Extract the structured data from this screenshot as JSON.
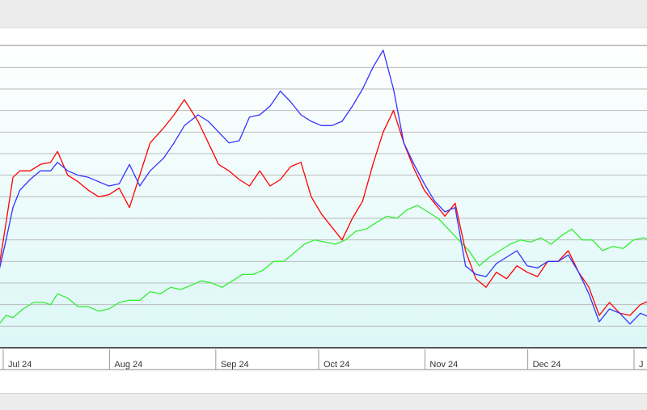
{
  "colors": {
    "series_red": "#ff0000",
    "series_blue": "#3333ff",
    "series_green": "#33ee33",
    "gridline": "#bbbbbb",
    "plot_gradient_top": "#ffffff",
    "plot_gradient_bottom": "#dcf7f7"
  },
  "chart_data": {
    "type": "line",
    "title": "",
    "xlabel": "",
    "ylabel": "",
    "grid": true,
    "legend": "none",
    "x_range": [
      "2024-06-24",
      "2025-01-03"
    ],
    "y_range": [
      0,
      15
    ],
    "x_ticks": [
      {
        "date": "2024-07-01",
        "label": "Jul 24"
      },
      {
        "date": "2024-08-01",
        "label": "Aug 24"
      },
      {
        "date": "2024-09-01",
        "label": "Sep 24"
      },
      {
        "date": "2024-10-01",
        "label": "Oct 24"
      },
      {
        "date": "2024-11-01",
        "label": "Nov 24"
      },
      {
        "date": "2024-12-01",
        "label": "Dec 24"
      },
      {
        "date": "2025-01-01",
        "label": "J"
      }
    ],
    "series": [
      {
        "color": "#ff0000",
        "points": [
          [
            "2024-06-24",
            2.8
          ],
          [
            "2024-06-27",
            3.8
          ],
          [
            "2024-06-29",
            5.8
          ],
          [
            "2024-07-01",
            7.9
          ],
          [
            "2024-07-03",
            8.2
          ],
          [
            "2024-07-06",
            8.2
          ],
          [
            "2024-07-09",
            8.5
          ],
          [
            "2024-07-12",
            8.6
          ],
          [
            "2024-07-14",
            9.1
          ],
          [
            "2024-07-17",
            8.0
          ],
          [
            "2024-07-20",
            7.7
          ],
          [
            "2024-07-23",
            7.3
          ],
          [
            "2024-07-26",
            7.0
          ],
          [
            "2024-07-29",
            7.1
          ],
          [
            "2024-08-01",
            7.4
          ],
          [
            "2024-08-04",
            6.5
          ],
          [
            "2024-08-07",
            8.0
          ],
          [
            "2024-08-10",
            9.5
          ],
          [
            "2024-08-14",
            10.2
          ],
          [
            "2024-08-17",
            10.8
          ],
          [
            "2024-08-20",
            11.5
          ],
          [
            "2024-08-24",
            10.5
          ],
          [
            "2024-08-27",
            9.5
          ],
          [
            "2024-08-30",
            8.5
          ],
          [
            "2024-09-02",
            8.2
          ],
          [
            "2024-09-05",
            7.8
          ],
          [
            "2024-09-08",
            7.5
          ],
          [
            "2024-09-11",
            8.2
          ],
          [
            "2024-09-14",
            7.5
          ],
          [
            "2024-09-17",
            7.8
          ],
          [
            "2024-09-20",
            8.4
          ],
          [
            "2024-09-23",
            8.6
          ],
          [
            "2024-09-26",
            7.0
          ],
          [
            "2024-09-29",
            6.2
          ],
          [
            "2024-10-02",
            5.6
          ],
          [
            "2024-10-05",
            5.0
          ],
          [
            "2024-10-08",
            6.0
          ],
          [
            "2024-10-11",
            6.8
          ],
          [
            "2024-10-14",
            8.5
          ],
          [
            "2024-10-17",
            10.0
          ],
          [
            "2024-10-20",
            11.0
          ],
          [
            "2024-10-23",
            9.5
          ],
          [
            "2024-10-26",
            8.3
          ],
          [
            "2024-10-29",
            7.3
          ],
          [
            "2024-11-01",
            6.7
          ],
          [
            "2024-11-04",
            6.1
          ],
          [
            "2024-11-07",
            6.7
          ],
          [
            "2024-11-10",
            4.5
          ],
          [
            "2024-11-13",
            3.2
          ],
          [
            "2024-11-16",
            2.8
          ],
          [
            "2024-11-19",
            3.5
          ],
          [
            "2024-11-22",
            3.2
          ],
          [
            "2024-11-25",
            3.8
          ],
          [
            "2024-11-28",
            3.5
          ],
          [
            "2024-12-01",
            3.3
          ],
          [
            "2024-12-04",
            4.0
          ],
          [
            "2024-12-07",
            4.0
          ],
          [
            "2024-12-10",
            4.5
          ],
          [
            "2024-12-13",
            3.5
          ],
          [
            "2024-12-16",
            2.8
          ],
          [
            "2024-12-19",
            1.5
          ],
          [
            "2024-12-22",
            2.1
          ],
          [
            "2024-12-25",
            1.6
          ],
          [
            "2024-12-28",
            1.5
          ],
          [
            "2024-12-31",
            2.0
          ],
          [
            "2025-01-03",
            2.2
          ]
        ]
      },
      {
        "color": "#3333ff",
        "points": [
          [
            "2024-06-24",
            2.8
          ],
          [
            "2024-06-27",
            3.6
          ],
          [
            "2024-06-29",
            5.0
          ],
          [
            "2024-07-01",
            6.5
          ],
          [
            "2024-07-03",
            7.3
          ],
          [
            "2024-07-06",
            7.8
          ],
          [
            "2024-07-09",
            8.2
          ],
          [
            "2024-07-12",
            8.2
          ],
          [
            "2024-07-14",
            8.6
          ],
          [
            "2024-07-17",
            8.2
          ],
          [
            "2024-07-20",
            8.0
          ],
          [
            "2024-07-23",
            7.9
          ],
          [
            "2024-07-26",
            7.7
          ],
          [
            "2024-07-29",
            7.5
          ],
          [
            "2024-08-01",
            7.6
          ],
          [
            "2024-08-04",
            8.5
          ],
          [
            "2024-08-07",
            7.5
          ],
          [
            "2024-08-10",
            8.2
          ],
          [
            "2024-08-14",
            8.8
          ],
          [
            "2024-08-17",
            9.5
          ],
          [
            "2024-08-20",
            10.3
          ],
          [
            "2024-08-24",
            10.8
          ],
          [
            "2024-08-27",
            10.5
          ],
          [
            "2024-08-30",
            10.0
          ],
          [
            "2024-09-02",
            9.5
          ],
          [
            "2024-09-05",
            9.6
          ],
          [
            "2024-09-08",
            10.7
          ],
          [
            "2024-09-11",
            10.8
          ],
          [
            "2024-09-14",
            11.2
          ],
          [
            "2024-09-17",
            11.9
          ],
          [
            "2024-09-20",
            11.4
          ],
          [
            "2024-09-23",
            10.8
          ],
          [
            "2024-09-26",
            10.5
          ],
          [
            "2024-09-29",
            10.3
          ],
          [
            "2024-10-02",
            10.3
          ],
          [
            "2024-10-05",
            10.5
          ],
          [
            "2024-10-08",
            11.2
          ],
          [
            "2024-10-11",
            12.0
          ],
          [
            "2024-10-14",
            13.0
          ],
          [
            "2024-10-17",
            13.8
          ],
          [
            "2024-10-20",
            12.0
          ],
          [
            "2024-10-23",
            9.5
          ],
          [
            "2024-10-26",
            8.5
          ],
          [
            "2024-10-29",
            7.6
          ],
          [
            "2024-11-01",
            6.8
          ],
          [
            "2024-11-04",
            6.3
          ],
          [
            "2024-11-07",
            6.5
          ],
          [
            "2024-11-10",
            3.8
          ],
          [
            "2024-11-13",
            3.4
          ],
          [
            "2024-11-16",
            3.3
          ],
          [
            "2024-11-19",
            3.9
          ],
          [
            "2024-11-22",
            4.2
          ],
          [
            "2024-11-25",
            4.5
          ],
          [
            "2024-11-28",
            3.8
          ],
          [
            "2024-12-01",
            3.7
          ],
          [
            "2024-12-04",
            4.0
          ],
          [
            "2024-12-07",
            4.0
          ],
          [
            "2024-12-10",
            4.3
          ],
          [
            "2024-12-13",
            3.5
          ],
          [
            "2024-12-16",
            2.5
          ],
          [
            "2024-12-19",
            1.2
          ],
          [
            "2024-12-22",
            1.8
          ],
          [
            "2024-12-25",
            1.6
          ],
          [
            "2024-12-28",
            1.1
          ],
          [
            "2024-12-31",
            1.6
          ],
          [
            "2025-01-03",
            1.4
          ]
        ]
      },
      {
        "color": "#33ee33",
        "points": [
          [
            "2024-06-24",
            1.0
          ],
          [
            "2024-06-27",
            1.1
          ],
          [
            "2024-06-29",
            1.5
          ],
          [
            "2024-07-01",
            1.4
          ],
          [
            "2024-07-04",
            1.8
          ],
          [
            "2024-07-07",
            2.1
          ],
          [
            "2024-07-10",
            2.1
          ],
          [
            "2024-07-12",
            2.0
          ],
          [
            "2024-07-14",
            2.5
          ],
          [
            "2024-07-17",
            2.3
          ],
          [
            "2024-07-20",
            1.9
          ],
          [
            "2024-07-23",
            1.9
          ],
          [
            "2024-07-26",
            1.7
          ],
          [
            "2024-07-29",
            1.8
          ],
          [
            "2024-08-01",
            2.1
          ],
          [
            "2024-08-04",
            2.2
          ],
          [
            "2024-08-07",
            2.2
          ],
          [
            "2024-08-10",
            2.6
          ],
          [
            "2024-08-13",
            2.5
          ],
          [
            "2024-08-16",
            2.8
          ],
          [
            "2024-08-19",
            2.7
          ],
          [
            "2024-08-22",
            2.9
          ],
          [
            "2024-08-25",
            3.1
          ],
          [
            "2024-08-28",
            3.0
          ],
          [
            "2024-08-31",
            2.8
          ],
          [
            "2024-09-03",
            3.1
          ],
          [
            "2024-09-06",
            3.4
          ],
          [
            "2024-09-09",
            3.4
          ],
          [
            "2024-09-12",
            3.6
          ],
          [
            "2024-09-15",
            4.0
          ],
          [
            "2024-09-18",
            4.0
          ],
          [
            "2024-09-21",
            4.4
          ],
          [
            "2024-09-24",
            4.8
          ],
          [
            "2024-09-27",
            5.0
          ],
          [
            "2024-09-30",
            4.9
          ],
          [
            "2024-10-03",
            4.8
          ],
          [
            "2024-10-06",
            5.0
          ],
          [
            "2024-10-09",
            5.4
          ],
          [
            "2024-10-12",
            5.5
          ],
          [
            "2024-10-15",
            5.8
          ],
          [
            "2024-10-18",
            6.1
          ],
          [
            "2024-10-21",
            6.0
          ],
          [
            "2024-10-24",
            6.4
          ],
          [
            "2024-10-27",
            6.6
          ],
          [
            "2024-10-30",
            6.3
          ],
          [
            "2024-11-02",
            6.0
          ],
          [
            "2024-11-05",
            5.5
          ],
          [
            "2024-11-08",
            5.0
          ],
          [
            "2024-11-11",
            4.5
          ],
          [
            "2024-11-14",
            3.8
          ],
          [
            "2024-11-17",
            4.2
          ],
          [
            "2024-11-20",
            4.5
          ],
          [
            "2024-11-23",
            4.8
          ],
          [
            "2024-11-26",
            5.0
          ],
          [
            "2024-11-29",
            4.9
          ],
          [
            "2024-12-02",
            5.1
          ],
          [
            "2024-12-05",
            4.8
          ],
          [
            "2024-12-08",
            5.2
          ],
          [
            "2024-12-11",
            5.5
          ],
          [
            "2024-12-14",
            5.0
          ],
          [
            "2024-12-17",
            5.0
          ],
          [
            "2024-12-20",
            4.5
          ],
          [
            "2024-12-23",
            4.7
          ],
          [
            "2024-12-26",
            4.6
          ],
          [
            "2024-12-29",
            5.0
          ],
          [
            "2025-01-01",
            5.1
          ],
          [
            "2025-01-03",
            5.0
          ]
        ]
      }
    ]
  }
}
